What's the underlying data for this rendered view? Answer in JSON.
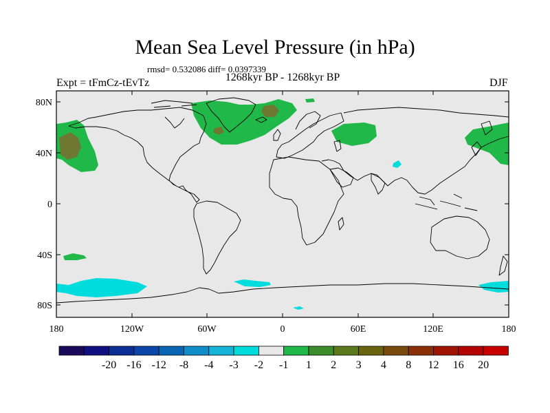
{
  "title": "Mean Sea Level Pressure (in hPa)",
  "stats": "rmsd= 0.532086 diff= 0.0397339",
  "period": "1268kyr BP - 1268kyr BP",
  "experiment": "Expt = tFmCz-tEvTz",
  "season": "DJF",
  "axes": {
    "lat_ticks": [
      "80N",
      "40N",
      "0",
      "40S",
      "80S"
    ],
    "lon_ticks": [
      "180",
      "120W",
      "60W",
      "0",
      "60E",
      "120E",
      "180"
    ]
  },
  "colors": {
    "background": "#e8e8e8",
    "coast": "#000000",
    "cyan": "#00dcdc",
    "green": "#20b848",
    "olive": "#6e7832"
  },
  "colorbar": {
    "colors": [
      "#1a0a5a",
      "#101080",
      "#0a2e96",
      "#0a46a8",
      "#0a64b4",
      "#108cc8",
      "#14b4d8",
      "#00dcdc",
      "#e8e8e8",
      "#20b848",
      "#3c8c2c",
      "#5a7a1c",
      "#6a6410",
      "#7a4a0c",
      "#8a3008",
      "#a01406",
      "#b40404",
      "#c80000"
    ],
    "labels": [
      "-20",
      "-16",
      "-12",
      "-8",
      "-4",
      "-3",
      "-2",
      "-1",
      "1",
      "2",
      "3",
      "4",
      "8",
      "12",
      "16",
      "20"
    ]
  },
  "anomaly_regions": [
    {
      "name": "north-pacific-west",
      "color": "green"
    },
    {
      "name": "north-pacific-west-core",
      "color": "olive"
    },
    {
      "name": "north-atlantic-greenland",
      "color": "green"
    },
    {
      "name": "north-atlantic-core",
      "color": "olive"
    },
    {
      "name": "arctic-small",
      "color": "green"
    },
    {
      "name": "siberia",
      "color": "green"
    },
    {
      "name": "north-pacific-east",
      "color": "green"
    },
    {
      "name": "tibet-small",
      "color": "cyan"
    },
    {
      "name": "south-pacific-small",
      "color": "green"
    },
    {
      "name": "southern-ocean-pacific",
      "color": "cyan"
    },
    {
      "name": "southern-ocean-atlantic",
      "color": "cyan"
    },
    {
      "name": "southern-ocean-east",
      "color": "cyan"
    },
    {
      "name": "antarctica-small",
      "color": "cyan"
    }
  ]
}
